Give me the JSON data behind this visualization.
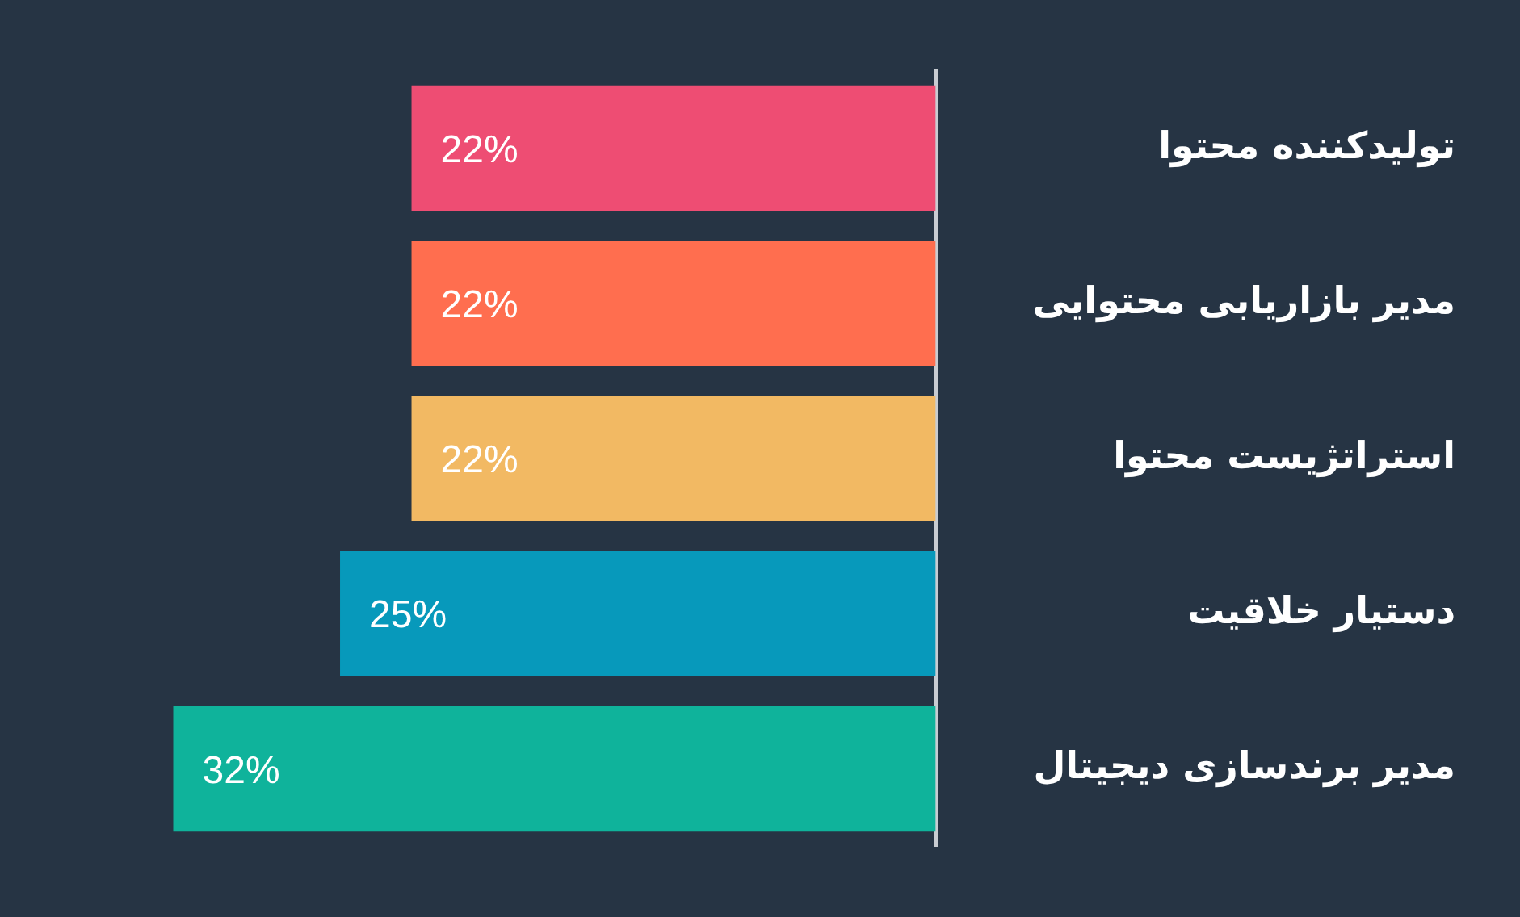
{
  "chart_data": {
    "type": "bar",
    "orientation": "horizontal",
    "categories": [
      "تولیدکننده محتوا",
      "مدیر بازاریابی محتوایی",
      "استراتژیست محتوا",
      "دستیار خلاقیت",
      "مدیر برندسازی دیجیتال"
    ],
    "values": [
      22,
      22,
      22,
      25,
      32
    ],
    "colors": [
      "#ee4d73",
      "#ff6e4f",
      "#f2b963",
      "#0799bb",
      "#0fb39b"
    ],
    "value_labels": [
      "22%",
      "22%",
      "22%",
      "25%",
      "32%"
    ]
  }
}
